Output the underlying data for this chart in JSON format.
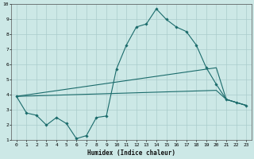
{
  "xlabel": "Humidex (Indice chaleur)",
  "xlim": [
    -0.5,
    23.5
  ],
  "ylim": [
    1,
    10
  ],
  "xticks": [
    0,
    1,
    2,
    3,
    4,
    5,
    6,
    7,
    8,
    9,
    10,
    11,
    12,
    13,
    14,
    15,
    16,
    17,
    18,
    19,
    20,
    21,
    22,
    23
  ],
  "yticks": [
    1,
    2,
    3,
    4,
    5,
    6,
    7,
    8,
    9,
    10
  ],
  "background_color": "#cce8e6",
  "grid_color": "#aacccc",
  "line_color": "#1a6b6b",
  "line1_x": [
    0,
    1,
    2,
    3,
    4,
    5,
    6,
    7,
    8,
    9,
    10,
    11,
    12,
    13,
    14,
    15,
    16,
    17,
    18,
    19,
    20,
    21,
    22,
    23
  ],
  "line1_y": [
    3.9,
    2.8,
    2.65,
    2.0,
    2.5,
    2.1,
    1.1,
    1.3,
    2.5,
    2.6,
    5.7,
    7.3,
    8.5,
    8.7,
    9.7,
    9.0,
    8.5,
    8.2,
    7.3,
    5.8,
    4.7,
    3.7,
    3.5,
    3.3
  ],
  "line2_x": [
    0,
    20,
    21,
    22,
    23
  ],
  "line2_y": [
    3.9,
    5.8,
    3.7,
    3.5,
    3.3
  ],
  "line3_x": [
    0,
    20,
    21,
    22,
    23
  ],
  "line3_y": [
    3.9,
    4.3,
    3.7,
    3.5,
    3.3
  ]
}
